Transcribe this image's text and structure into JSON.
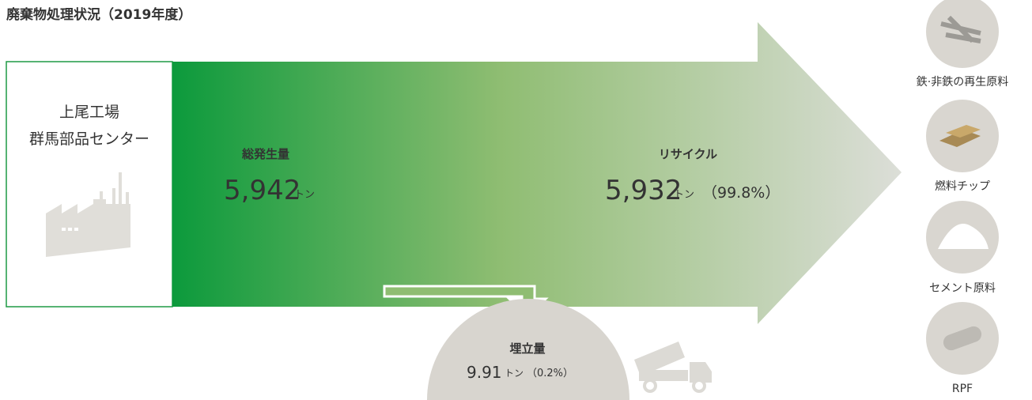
{
  "title": "廃棄物処理状況（2019年度）",
  "source": {
    "lines": [
      "上尾工場",
      "群馬部品センター"
    ]
  },
  "total": {
    "label": "総発生量",
    "value": "5,942",
    "unit": "トン"
  },
  "recycle": {
    "label": "リサイクル",
    "value": "5,932",
    "unit": "トン",
    "share": "（99.8%）"
  },
  "landfill": {
    "label": "埋立量",
    "value": "9.91",
    "unit": "トン",
    "share": "（0.2%）"
  },
  "outputs": [
    "鉄·非鉄の再生原料",
    "燃料チップ",
    "セメント原料",
    "RPF"
  ]
}
